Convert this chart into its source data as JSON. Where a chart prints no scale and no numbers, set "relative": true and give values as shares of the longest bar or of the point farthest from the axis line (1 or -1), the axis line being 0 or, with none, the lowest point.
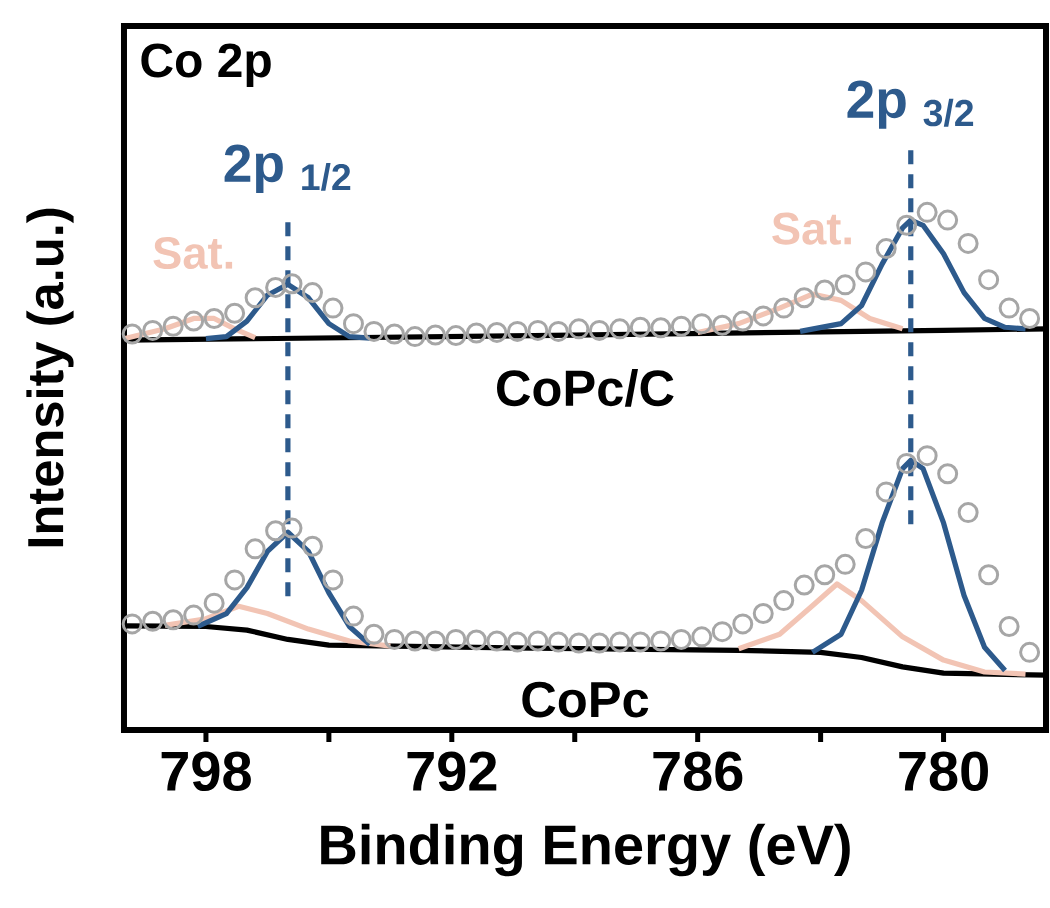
{
  "chart_data": {
    "type": "line",
    "relative": true,
    "xlabel": "Binding Energy (eV)",
    "ylabel": "Intensity (a.u.)",
    "annotations": [
      "Co 2p"
    ],
    "xlim": [
      800,
      777.5
    ],
    "xticks": [
      798,
      {
        "value": 795,
        "label": null
      },
      792,
      {
        "value": 789,
        "label": null
      },
      786,
      {
        "value": 783,
        "label": null
      },
      780
    ],
    "ref_lines": [
      {
        "axis": "x",
        "value": 796,
        "label": "2p $_{1/2}$",
        "color": "#2d5a8c",
        "line_style": "dashed"
      },
      {
        "axis": "x",
        "value": 780.8,
        "label": "2p $_{3/2}$",
        "color": "#2d5a8c",
        "line_style": "dashed"
      }
    ],
    "series": [
      {
        "type": "scatter",
        "marker": "circle",
        "color": "#a6a6a6",
        "x": [
          799.8,
          799.3,
          798.8,
          798.3,
          797.8,
          797.3,
          796.8,
          796.3,
          795.9,
          795.4,
          794.9,
          794.4,
          793.9,
          793.4,
          792.9,
          792.4,
          791.9,
          791.4,
          790.9,
          790.4,
          789.9,
          789.4,
          788.9,
          788.4,
          787.9,
          787.4,
          786.9,
          786.4,
          785.9,
          785.4,
          784.9,
          784.4,
          783.9,
          783.4,
          782.9,
          782.4,
          781.9,
          781.4,
          780.9,
          780.4,
          779.9,
          779.4,
          778.9,
          778.4,
          777.9
        ],
        "values": [
          0.765,
          0.772,
          0.78,
          0.79,
          0.795,
          0.805,
          0.835,
          0.855,
          0.862,
          0.845,
          0.815,
          0.785,
          0.77,
          0.765,
          0.76,
          0.763,
          0.762,
          0.767,
          0.768,
          0.77,
          0.772,
          0.77,
          0.775,
          0.772,
          0.775,
          0.778,
          0.777,
          0.78,
          0.785,
          0.782,
          0.79,
          0.8,
          0.815,
          0.835,
          0.85,
          0.86,
          0.885,
          0.93,
          0.975,
          1.0,
          0.985,
          0.94,
          0.87,
          0.815,
          0.795
        ]
      },
      {
        "type": "scatter",
        "marker": "circle",
        "color": "#a6a6a6",
        "x": [
          799.8,
          799.3,
          798.8,
          798.3,
          797.8,
          797.3,
          796.8,
          796.3,
          795.9,
          795.4,
          794.9,
          794.4,
          793.9,
          793.4,
          792.9,
          792.4,
          791.9,
          791.4,
          790.9,
          790.4,
          789.9,
          789.4,
          788.9,
          788.4,
          787.9,
          787.4,
          786.9,
          786.4,
          785.9,
          785.4,
          784.9,
          784.4,
          783.9,
          783.4,
          782.9,
          782.4,
          781.9,
          781.4,
          780.9,
          780.4,
          779.9,
          779.4,
          778.9,
          778.4,
          777.9
        ],
        "values": [
          0.205,
          0.21,
          0.213,
          0.222,
          0.245,
          0.29,
          0.35,
          0.385,
          0.39,
          0.355,
          0.29,
          0.22,
          0.185,
          0.175,
          0.172,
          0.172,
          0.175,
          0.174,
          0.172,
          0.17,
          0.172,
          0.17,
          0.168,
          0.168,
          0.17,
          0.17,
          0.172,
          0.175,
          0.18,
          0.19,
          0.205,
          0.225,
          0.25,
          0.28,
          0.3,
          0.32,
          0.37,
          0.46,
          0.515,
          0.53,
          0.495,
          0.42,
          0.3,
          0.2,
          0.15
        ]
      },
      {
        "name": "CoPc/C",
        "color": "#000000",
        "x": [
          800,
          790,
          780,
          777.5
        ],
        "values": [
          0.753,
          0.762,
          0.772,
          0.775
        ]
      },
      {
        "name": "Sat.",
        "color": "#f2c4b4",
        "x": [
          800,
          799,
          798.3,
          797.8,
          797.3,
          796.8
        ],
        "values": [
          0.756,
          0.775,
          0.795,
          0.795,
          0.775,
          0.758
        ]
      },
      {
        "name": "Sat.",
        "color": "#f2c4b4",
        "x": [
          786,
          785,
          784,
          783.2,
          782.5,
          781.8,
          781
        ],
        "values": [
          0.768,
          0.785,
          0.815,
          0.842,
          0.83,
          0.795,
          0.775
        ]
      },
      {
        "color": "#2d5a8c",
        "x": [
          798,
          797.5,
          797,
          796.5,
          796,
          795.5,
          795,
          794.5,
          794
        ],
        "values": [
          0.756,
          0.76,
          0.79,
          0.84,
          0.861,
          0.835,
          0.785,
          0.76,
          0.757
        ]
      },
      {
        "color": "#2d5a8c",
        "x": [
          783.5,
          782.5,
          782,
          781.5,
          781,
          780.8,
          780.5,
          780,
          779.5,
          779,
          778.5,
          778
        ],
        "values": [
          0.77,
          0.785,
          0.82,
          0.9,
          0.97,
          0.985,
          0.975,
          0.92,
          0.845,
          0.795,
          0.778,
          0.775
        ]
      },
      {
        "name": "CoPc",
        "color": "#000000",
        "x": [
          800,
          798,
          797,
          796,
          795,
          790,
          785,
          783,
          782,
          781,
          780,
          777.5
        ],
        "values": [
          0.201,
          0.2,
          0.193,
          0.175,
          0.164,
          0.158,
          0.154,
          0.15,
          0.14,
          0.122,
          0.11,
          0.106
        ]
      },
      {
        "color": "#f2c4b4",
        "x": [
          799,
          798,
          797.2,
          796.5,
          795.5,
          794.5,
          793.5
        ],
        "values": [
          0.202,
          0.215,
          0.239,
          0.225,
          0.195,
          0.172,
          0.162
        ]
      },
      {
        "color": "#f2c4b4",
        "x": [
          785,
          784,
          783.2,
          782.6,
          782,
          781,
          780,
          779,
          778
        ],
        "values": [
          0.157,
          0.185,
          0.24,
          0.282,
          0.25,
          0.18,
          0.135,
          0.112,
          0.108
        ]
      },
      {
        "color": "#2d5a8c",
        "x": [
          798.2,
          797.5,
          797,
          796.5,
          796,
          795.5,
          795,
          794.5,
          794
        ],
        "values": [
          0.2,
          0.225,
          0.275,
          0.345,
          0.382,
          0.345,
          0.265,
          0.2,
          0.165
        ]
      },
      {
        "color": "#2d5a8c",
        "x": [
          783.2,
          782.5,
          782,
          781.5,
          781,
          780.8,
          780.5,
          780,
          779.5,
          779,
          778.5
        ],
        "values": [
          0.15,
          0.185,
          0.27,
          0.4,
          0.505,
          0.521,
          0.505,
          0.4,
          0.26,
          0.16,
          0.115
        ]
      }
    ]
  }
}
